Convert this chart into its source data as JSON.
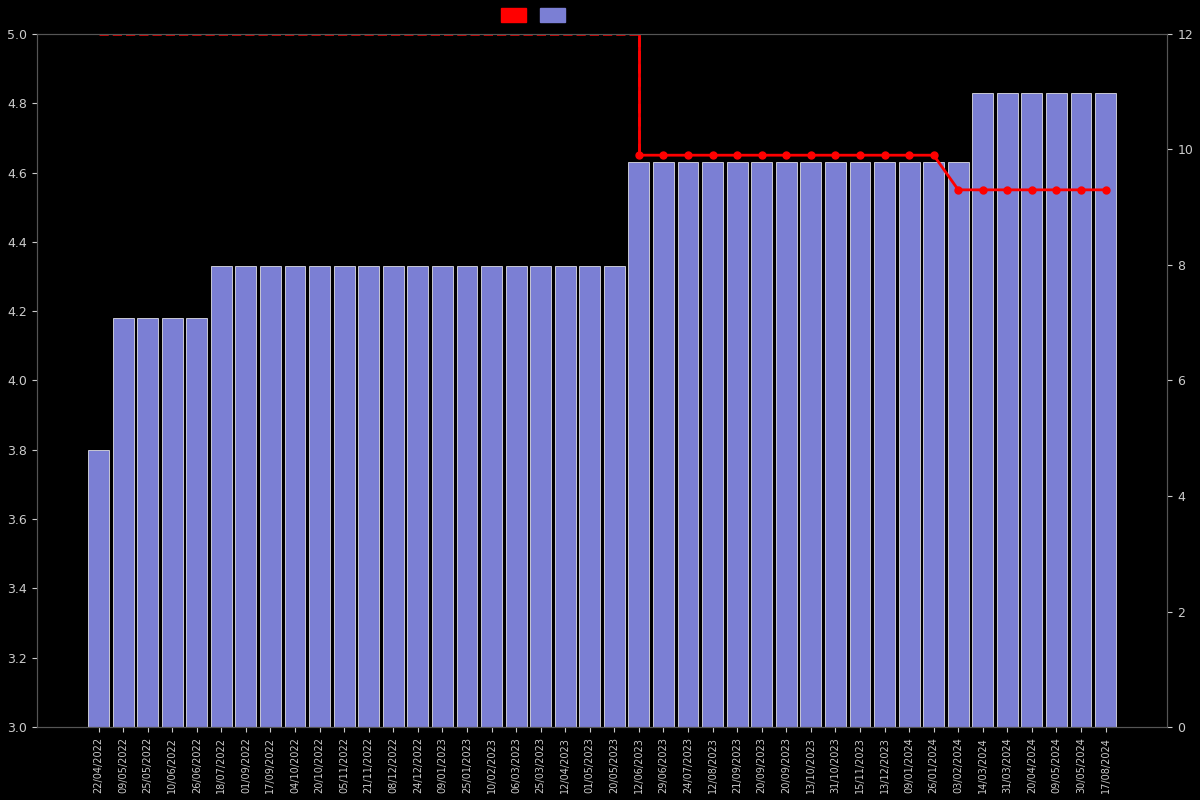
{
  "background_color": "#000000",
  "bar_color": "#7B7FD4",
  "bar_edge_color": "#ffffff",
  "line_color": "#FF0000",
  "left_ylim": [
    3.0,
    5.0
  ],
  "right_ylim": [
    0,
    12
  ],
  "left_yticks": [
    3.0,
    3.2,
    3.4,
    3.6,
    3.8,
    4.0,
    4.2,
    4.4,
    4.6,
    4.8,
    5.0
  ],
  "right_yticks": [
    0,
    2,
    4,
    6,
    8,
    10,
    12
  ],
  "dates": [
    "22/04/2022",
    "09/05/2022",
    "25/05/2022",
    "10/06/2022",
    "26/06/2022",
    "18/07/2022",
    "01/09/2022",
    "17/09/2022",
    "04/10/2022",
    "20/10/2022",
    "05/11/2022",
    "21/11/2022",
    "08/12/2022",
    "24/12/2022",
    "09/01/2023",
    "25/01/2023",
    "10/02/2023",
    "06/03/2023",
    "25/03/2023",
    "12/04/2023",
    "01/05/2023",
    "20/05/2023",
    "12/06/2023",
    "29/06/2023",
    "24/07/2023",
    "12/08/2023",
    "21/09/2023",
    "20/09/2023",
    "20/09/2023",
    "13/10/2023",
    "31/10/2023",
    "15/11/2023",
    "13/12/2023",
    "09/01/2024",
    "26/01/2024",
    "03/02/2024",
    "14/03/2024",
    "31/03/2024",
    "20/04/2024",
    "09/05/2024",
    "30/05/2024",
    "17/08/2024"
  ],
  "bar_heights": [
    3.8,
    4.18,
    4.18,
    4.18,
    4.18,
    4.33,
    4.33,
    4.33,
    4.33,
    4.33,
    4.33,
    4.33,
    4.33,
    4.33,
    4.33,
    4.33,
    4.33,
    4.33,
    4.33,
    4.33,
    4.33,
    4.33,
    4.63,
    4.63,
    4.63,
    4.63,
    4.63,
    4.63,
    4.63,
    4.63,
    4.63,
    4.63,
    4.63,
    4.63,
    4.63,
    4.63,
    4.83,
    4.83,
    4.83,
    4.83,
    4.83,
    4.83
  ],
  "line_values": [
    5.0,
    5.0,
    5.0,
    5.0,
    5.0,
    5.0,
    5.0,
    5.0,
    5.0,
    5.0,
    5.0,
    5.0,
    5.0,
    5.0,
    5.0,
    5.0,
    5.0,
    5.0,
    5.0,
    5.0,
    5.0,
    5.0,
    4.65,
    4.65,
    4.65,
    4.65,
    4.65,
    4.65,
    4.65,
    4.65,
    4.65,
    4.65,
    4.65,
    4.65,
    4.65,
    4.55,
    4.55,
    4.55,
    4.55,
    4.55,
    4.55,
    4.55
  ],
  "text_color": "#cccccc",
  "figsize": [
    12,
    8
  ],
  "dpi": 100,
  "bar_bottom": 3.0,
  "marker_size": 5
}
